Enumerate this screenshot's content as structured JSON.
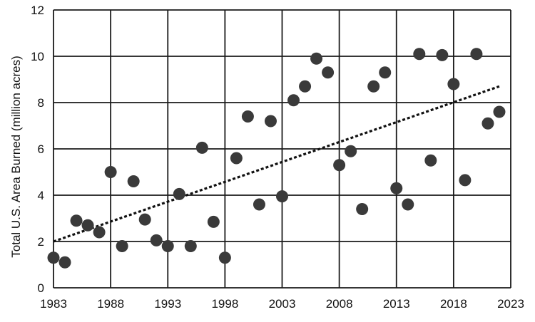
{
  "chart_data": {
    "type": "scatter",
    "title": "",
    "xlabel": "",
    "ylabel": "Total U.S. Area Burned (million acres)",
    "xlim": [
      1983,
      2023
    ],
    "ylim": [
      0,
      12
    ],
    "x_ticks": [
      1983,
      1988,
      1993,
      1998,
      2003,
      2008,
      2013,
      2018,
      2023
    ],
    "y_ticks": [
      0,
      2,
      4,
      6,
      8,
      10,
      12
    ],
    "grid": true,
    "point_color": "#3a3a3a",
    "trend_color": "#111111",
    "x": [
      1983,
      1984,
      1985,
      1986,
      1987,
      1988,
      1989,
      1990,
      1991,
      1992,
      1993,
      1994,
      1995,
      1996,
      1997,
      1998,
      1999,
      2000,
      2001,
      2002,
      2003,
      2004,
      2005,
      2006,
      2007,
      2008,
      2009,
      2010,
      2011,
      2012,
      2013,
      2014,
      2015,
      2016,
      2017,
      2018,
      2019,
      2020,
      2021,
      2022
    ],
    "y": [
      1.3,
      1.1,
      2.9,
      2.7,
      2.4,
      5.0,
      1.8,
      4.6,
      2.95,
      2.05,
      1.8,
      4.05,
      1.8,
      6.05,
      2.85,
      1.3,
      5.6,
      7.4,
      3.6,
      7.2,
      3.95,
      8.1,
      8.7,
      9.9,
      9.3,
      5.3,
      5.9,
      3.4,
      8.7,
      9.3,
      4.3,
      3.6,
      10.1,
      5.5,
      10.05,
      8.8,
      4.65,
      10.1,
      7.1,
      7.6
    ],
    "trend": {
      "x": [
        1983,
        2022
      ],
      "y": [
        2.0,
        8.7
      ]
    }
  }
}
